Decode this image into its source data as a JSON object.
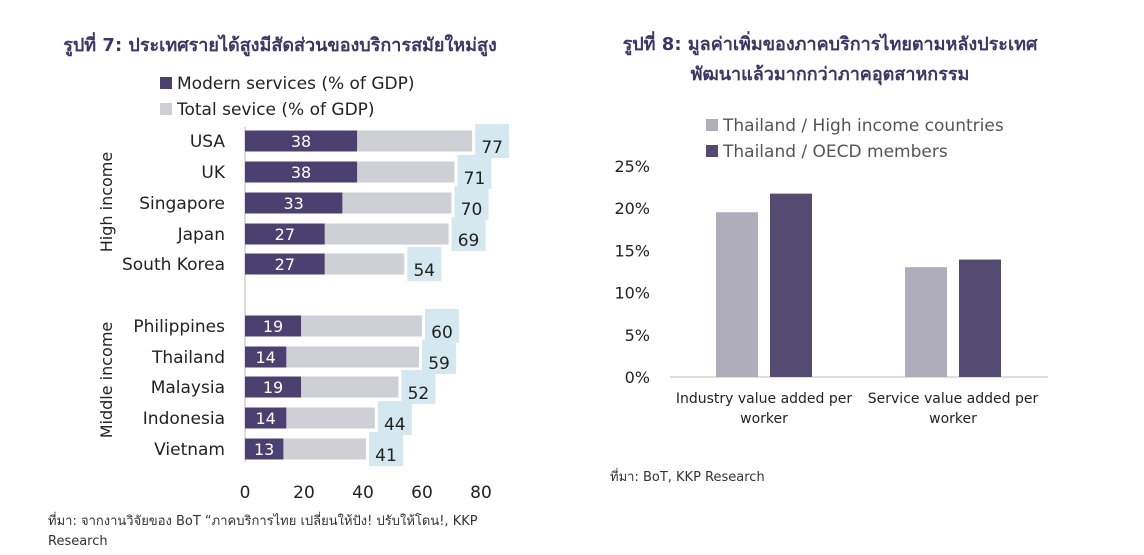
{
  "left_chart": {
    "title": "รูปที่ 7: ประเทศรายได้สูงมีสัดส่วนของบริการสมัยใหม่สูง",
    "source": "ที่มา: จากงานวิจัยของ BoT “ภาคบริการไทย เปลี่ยนให้ปัง! ปรับให้โดน!, KKP Research"
  },
  "right_chart": {
    "title_line1": "รูปที่ 8: มูลค่าเพิ่มของภาคบริการไทยตามหลังประเทศ",
    "title_line2": "พัฒนาแล้วมากกว่าภาคอุตสาหกรรม",
    "source": "ที่มา: BoT, KKP Research"
  },
  "chart_data": [
    {
      "type": "bar",
      "orientation": "horizontal",
      "groups": [
        {
          "label": "High income",
          "categories": [
            "USA",
            "UK",
            "Singapore",
            "Japan",
            "South Korea"
          ]
        },
        {
          "label": "Middle income",
          "categories": [
            "Philippines",
            "Thailand",
            "Malaysia",
            "Indonesia",
            "Vietnam"
          ]
        }
      ],
      "categories": [
        "USA",
        "UK",
        "Singapore",
        "Japan",
        "South Korea",
        "Philippines",
        "Thailand",
        "Malaysia",
        "Indonesia",
        "Vietnam"
      ],
      "series": [
        {
          "name": "Modern services (% of GDP)",
          "values": [
            38,
            38,
            33,
            27,
            27,
            19,
            14,
            19,
            14,
            13
          ],
          "color": "#4b4070"
        },
        {
          "name": "Total sevice (% of GDP)",
          "values": [
            77,
            71,
            70,
            69,
            54,
            60,
            59,
            52,
            44,
            41
          ],
          "color": "#cfcfd6"
        }
      ],
      "label_box_color": "#d4e8f0",
      "xlim": [
        0,
        80
      ],
      "xticks": [
        "0",
        "20",
        "40",
        "60",
        "80"
      ],
      "legend": "top-left",
      "grid": false
    },
    {
      "type": "bar",
      "categories": [
        "Industry value added per worker",
        "Service value added per worker"
      ],
      "series": [
        {
          "name": "Thailand / High income countries",
          "values": [
            19.5,
            13
          ],
          "color": "#b0adba"
        },
        {
          "name": "Thailand / OECD members",
          "values": [
            21.7,
            13.9
          ],
          "color": "#554a72"
        }
      ],
      "ylim": [
        0,
        25
      ],
      "yticks": [
        "0%",
        "5%",
        "10%",
        "15%",
        "20%",
        "25%"
      ],
      "legend": "top",
      "grid": false
    }
  ]
}
